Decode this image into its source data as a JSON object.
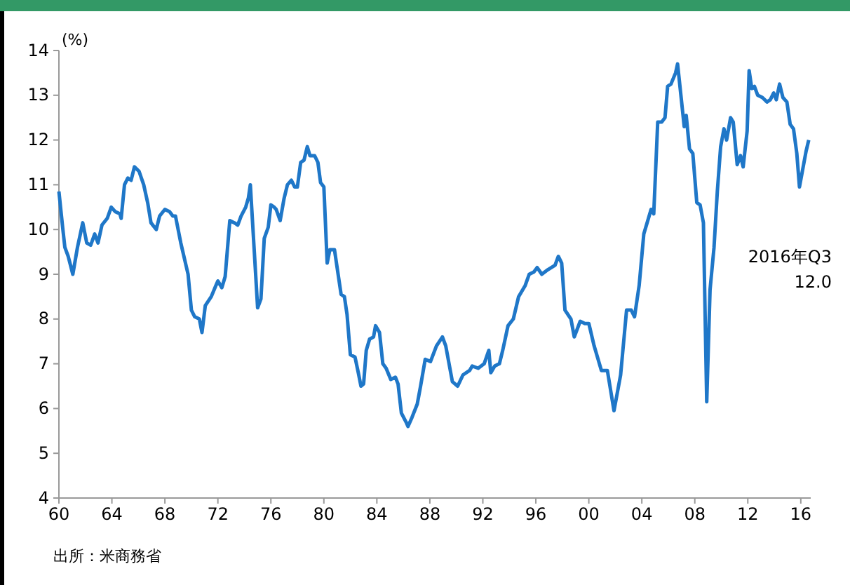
{
  "chart_data": {
    "type": "line",
    "ylabel": "(%)",
    "annotations": [
      "2016年Q3\n12.0",
      "出所：米商務省"
    ],
    "xlim": [
      1960,
      2016.75
    ],
    "ylim": [
      4,
      14
    ],
    "xticks": [
      {
        "value": 1960,
        "label": "60"
      },
      {
        "value": 1964,
        "label": "64"
      },
      {
        "value": 1968,
        "label": "68"
      },
      {
        "value": 1972,
        "label": "72"
      },
      {
        "value": 1976,
        "label": "76"
      },
      {
        "value": 1980,
        "label": "80"
      },
      {
        "value": 1984,
        "label": "84"
      },
      {
        "value": 1988,
        "label": "88"
      },
      {
        "value": 1992,
        "label": "92"
      },
      {
        "value": 1996,
        "label": "96"
      },
      {
        "value": 2000,
        "label": "00"
      },
      {
        "value": 2004,
        "label": "04"
      },
      {
        "value": 2008,
        "label": "08"
      },
      {
        "value": 2012,
        "label": "12"
      },
      {
        "value": 2016,
        "label": "16"
      }
    ],
    "yticks": [
      4,
      5,
      6,
      7,
      8,
      9,
      10,
      11,
      12,
      13,
      14
    ],
    "grid": false,
    "marker": "none",
    "line_style": "solid",
    "series": [
      {
        "color": "#1f77c8",
        "x": [
          1960.0,
          1960.3,
          1960.45,
          1960.7,
          1961.05,
          1961.4,
          1961.8,
          1962.1,
          1962.4,
          1962.7,
          1962.95,
          1963.25,
          1963.65,
          1963.95,
          1964.25,
          1964.6,
          1964.7,
          1964.95,
          1965.2,
          1965.45,
          1965.7,
          1966.05,
          1966.4,
          1966.7,
          1966.95,
          1967.35,
          1967.6,
          1968.0,
          1968.35,
          1968.6,
          1968.8,
          1969.2,
          1969.75,
          1970.0,
          1970.25,
          1970.6,
          1970.8,
          1971.05,
          1971.5,
          1971.85,
          1972.0,
          1972.3,
          1972.55,
          1972.9,
          1973.25,
          1973.5,
          1973.75,
          1974.1,
          1974.3,
          1974.45,
          1974.75,
          1975.0,
          1975.25,
          1975.5,
          1975.8,
          1976.0,
          1976.25,
          1976.4,
          1976.7,
          1977.0,
          1977.25,
          1977.55,
          1977.8,
          1978.0,
          1978.25,
          1978.5,
          1978.75,
          1978.95,
          1979.3,
          1979.55,
          1979.75,
          1980.0,
          1980.25,
          1980.45,
          1980.8,
          1981.0,
          1981.3,
          1981.55,
          1981.75,
          1982.0,
          1982.35,
          1982.6,
          1982.8,
          1983.0,
          1983.2,
          1983.45,
          1983.75,
          1983.9,
          1984.2,
          1984.45,
          1984.7,
          1985.05,
          1985.4,
          1985.6,
          1985.85,
          1986.2,
          1986.35,
          1986.65,
          1987.05,
          1987.3,
          1987.65,
          1988.05,
          1988.5,
          1988.95,
          1989.2,
          1989.7,
          1990.1,
          1990.5,
          1991.0,
          1991.2,
          1991.65,
          1992.1,
          1992.45,
          1992.6,
          1992.9,
          1993.25,
          1993.5,
          1993.9,
          1994.3,
          1994.7,
          1995.2,
          1995.5,
          1995.85,
          1996.1,
          1996.45,
          1996.9,
          1997.45,
          1997.7,
          1997.95,
          1998.2,
          1998.65,
          1998.9,
          1999.35,
          1999.7,
          2000.0,
          2000.4,
          2000.95,
          2001.4,
          2001.9,
          2002.4,
          2002.85,
          2003.2,
          2003.45,
          2003.8,
          2004.15,
          2004.45,
          2004.7,
          2004.9,
          2005.2,
          2005.5,
          2005.75,
          2005.95,
          2006.2,
          2006.55,
          2006.7,
          2006.95,
          2007.2,
          2007.35,
          2007.6,
          2007.85,
          2008.15,
          2008.4,
          2008.65,
          2008.9,
          2009.15,
          2009.45,
          2009.7,
          2009.95,
          2010.2,
          2010.4,
          2010.7,
          2010.9,
          2011.2,
          2011.45,
          2011.65,
          2011.95,
          2012.1,
          2012.3,
          2012.5,
          2012.75,
          2013.1,
          2013.45,
          2013.7,
          2013.95,
          2014.15,
          2014.4,
          2014.65,
          2014.95,
          2015.2,
          2015.45,
          2015.7,
          2015.9,
          2016.15,
          2016.4,
          2016.6
        ],
        "values": [
          10.85,
          10.0,
          9.6,
          9.4,
          9.0,
          9.6,
          10.15,
          9.7,
          9.65,
          9.9,
          9.7,
          10.1,
          10.25,
          10.5,
          10.4,
          10.35,
          10.25,
          11.0,
          11.15,
          11.1,
          11.4,
          11.3,
          11.0,
          10.6,
          10.15,
          10.0,
          10.3,
          10.45,
          10.4,
          10.3,
          10.3,
          9.7,
          9.0,
          8.2,
          8.05,
          8.0,
          7.7,
          8.3,
          8.5,
          8.75,
          8.85,
          8.7,
          8.95,
          10.2,
          10.15,
          10.1,
          10.3,
          10.5,
          10.7,
          11.0,
          9.5,
          8.25,
          8.45,
          9.8,
          10.05,
          10.55,
          10.5,
          10.45,
          10.2,
          10.7,
          11.0,
          11.1,
          10.95,
          10.95,
          11.5,
          11.55,
          11.85,
          11.65,
          11.65,
          11.5,
          11.05,
          10.95,
          9.25,
          9.55,
          9.55,
          9.15,
          8.55,
          8.5,
          8.1,
          7.2,
          7.15,
          6.8,
          6.5,
          6.55,
          7.3,
          7.55,
          7.6,
          7.85,
          7.7,
          7.0,
          6.9,
          6.65,
          6.7,
          6.55,
          5.9,
          5.7,
          5.6,
          5.8,
          6.1,
          6.5,
          7.1,
          7.05,
          7.4,
          7.6,
          7.4,
          6.6,
          6.5,
          6.75,
          6.85,
          6.95,
          6.9,
          7.0,
          7.3,
          6.8,
          6.95,
          7.0,
          7.3,
          7.85,
          8.0,
          8.5,
          8.75,
          9.0,
          9.05,
          9.15,
          9.0,
          9.1,
          9.2,
          9.4,
          9.25,
          8.2,
          8.0,
          7.6,
          7.95,
          7.9,
          7.9,
          7.4,
          6.85,
          6.85,
          5.95,
          6.75,
          8.2,
          8.2,
          8.05,
          8.75,
          9.9,
          10.2,
          10.45,
          10.35,
          12.4,
          12.4,
          12.5,
          13.2,
          13.25,
          13.5,
          13.7,
          13.0,
          12.3,
          12.55,
          11.8,
          11.7,
          10.6,
          10.55,
          10.15,
          6.15,
          8.65,
          9.6,
          10.85,
          11.85,
          12.25,
          12.0,
          12.5,
          12.4,
          11.45,
          11.65,
          11.4,
          12.2,
          13.55,
          13.15,
          13.2,
          13.0,
          12.95,
          12.85,
          12.9,
          13.05,
          12.9,
          13.25,
          12.95,
          12.85,
          12.35,
          12.25,
          11.7,
          10.95,
          11.35,
          11.75,
          12.0
        ]
      }
    ]
  }
}
